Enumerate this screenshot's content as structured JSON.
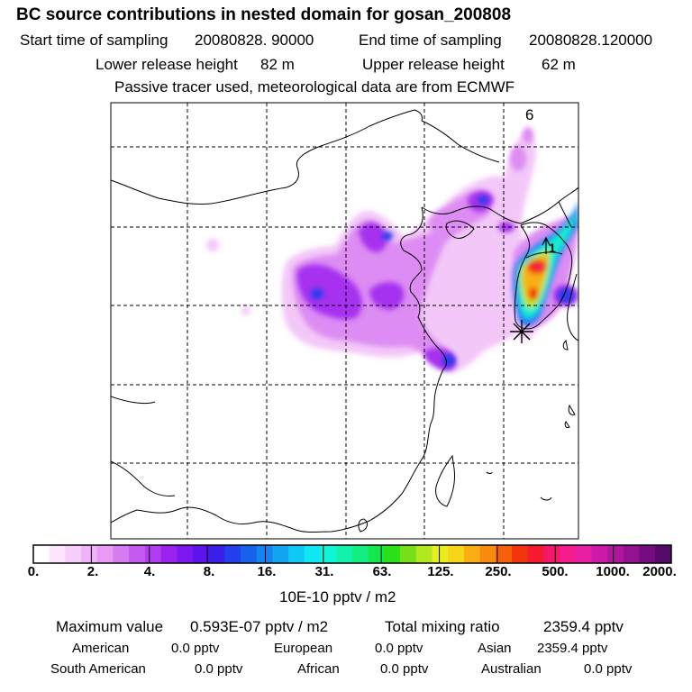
{
  "header": {
    "title": "BC  source contributions in nested domain for gosan_200808",
    "start_label": "Start time of sampling",
    "start_value": "20080828. 90000",
    "end_label": "End time of sampling",
    "end_value": "20080828.120000",
    "lower_label": "Lower release height",
    "lower_value": "82 m",
    "upper_label": "Upper release height",
    "upper_value": "62 m",
    "note": "Passive tracer used, meteorological data are from ECMWF"
  },
  "map": {
    "time_marker": "6",
    "trajectory_marker": "1"
  },
  "legend": {
    "ticks": [
      "0.",
      "2.",
      "4.",
      "8.",
      "16.",
      "31.",
      "63.",
      "125.",
      "250.",
      "500.",
      "1000.",
      "2000."
    ],
    "unit": "10E-10 pptv / m2",
    "colors": [
      "#ffffff",
      "#fbe6fd",
      "#f6cdfb",
      "#f0b2f8",
      "#e99af5",
      "#d47cf0",
      "#c55af0",
      "#b13cf0",
      "#9b21ef",
      "#7d17ef",
      "#5b14ec",
      "#3a1fe9",
      "#2240eb",
      "#1662ed",
      "#1383f0",
      "#11a5f2",
      "#10c8f4",
      "#0fe8f4",
      "#10f5d8",
      "#12f2ae",
      "#13ee80",
      "#12e84e",
      "#2be016",
      "#75e01a",
      "#b2e81e",
      "#e8ee1e",
      "#f7d519",
      "#f8af14",
      "#f88a10",
      "#f5600c",
      "#f2340c",
      "#f51a30",
      "#f5186a",
      "#f51c8d",
      "#e81fa4",
      "#cc1aa8",
      "#b0169e",
      "#921290",
      "#740e80",
      "#560a6a"
    ]
  },
  "stats": {
    "max_label": "Maximum value",
    "max_value": "0.593E-07 pptv / m2",
    "total_label": "Total mixing ratio",
    "total_value": "2359.4 pptv",
    "regions": [
      {
        "name": "American",
        "value": "0.0 pptv"
      },
      {
        "name": "European",
        "value": "0.0 pptv"
      },
      {
        "name": "Asian",
        "value": "2359.4 pptv"
      },
      {
        "name": "South American",
        "value": "0.0 pptv"
      },
      {
        "name": "African",
        "value": "0.0 pptv"
      },
      {
        "name": "Australian",
        "value": "0.0 pptv"
      }
    ]
  }
}
